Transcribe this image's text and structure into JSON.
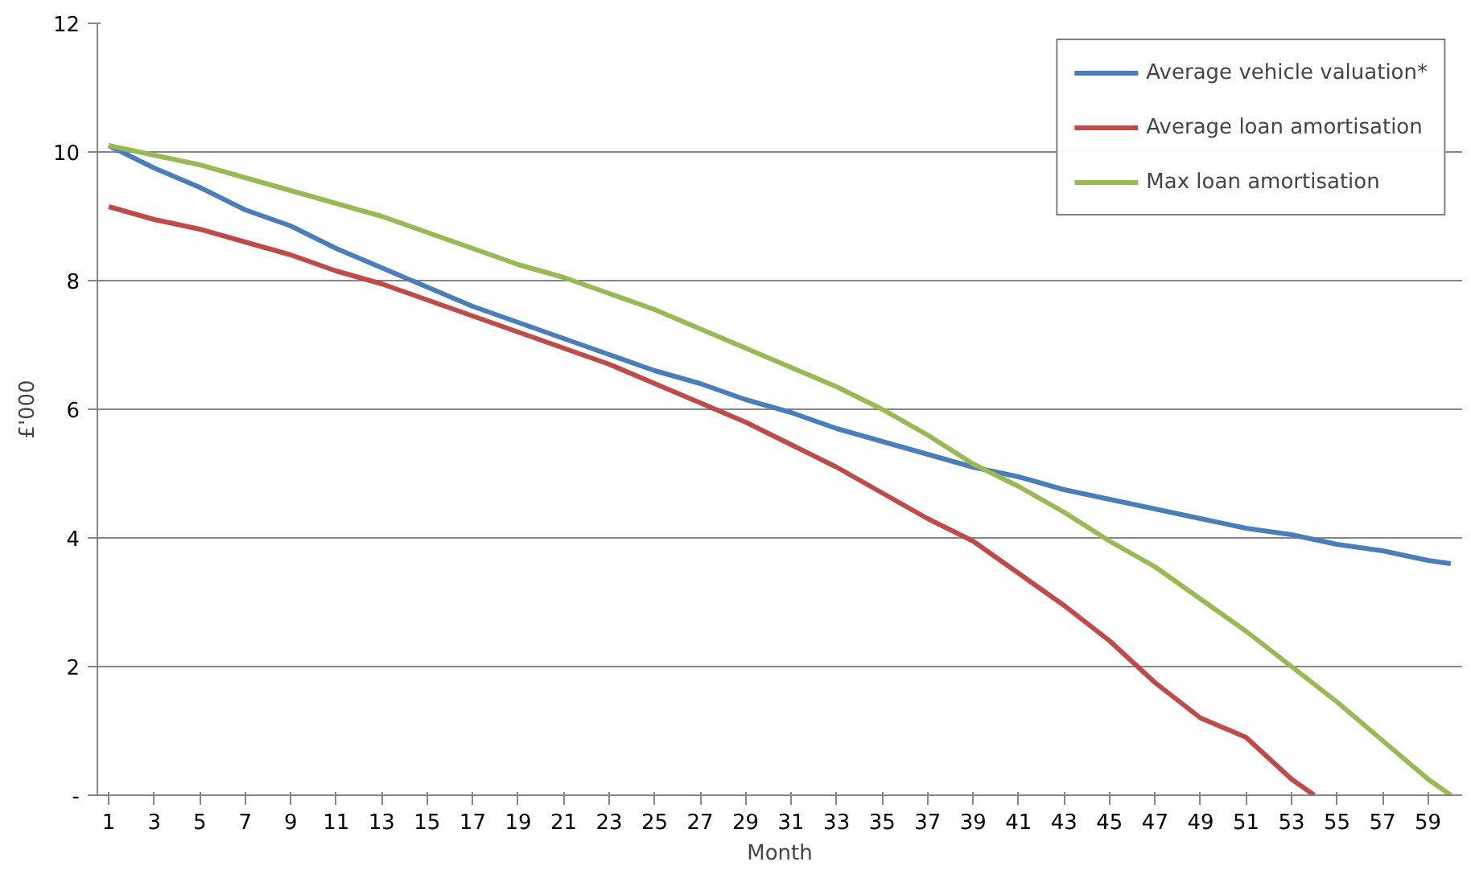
{
  "chart_data": {
    "type": "line",
    "xlabel": "Month",
    "ylabel": "£'000",
    "xlim": [
      0.5,
      60.5
    ],
    "xticks": [
      1,
      3,
      5,
      7,
      9,
      11,
      13,
      15,
      17,
      19,
      21,
      23,
      25,
      27,
      29,
      31,
      33,
      35,
      37,
      39,
      41,
      43,
      45,
      47,
      49,
      51,
      53,
      55,
      57,
      59
    ],
    "ylim": [
      0,
      12
    ],
    "yticks": [
      {
        "value": 0,
        "label": "-"
      },
      2,
      4,
      6,
      8,
      10,
      12
    ],
    "grid": "y",
    "legend": "top right",
    "marker": "none",
    "line_style": "solid",
    "series": [
      {
        "name": "Average vehicle valuation*",
        "color": "#4a7ebb",
        "x": [
          1,
          3,
          5,
          7,
          9,
          11,
          13,
          15,
          17,
          19,
          21,
          23,
          25,
          27,
          29,
          31,
          33,
          35,
          37,
          39,
          41,
          43,
          45,
          47,
          49,
          51,
          53,
          55,
          57,
          59,
          60
        ],
        "values": [
          10.1,
          9.75,
          9.45,
          9.1,
          8.85,
          8.5,
          8.2,
          7.9,
          7.6,
          7.35,
          7.1,
          6.85,
          6.6,
          6.4,
          6.15,
          5.95,
          5.7,
          5.5,
          5.3,
          5.1,
          4.95,
          4.75,
          4.6,
          4.45,
          4.3,
          4.15,
          4.05,
          3.9,
          3.8,
          3.65,
          3.6
        ]
      },
      {
        "name": "Average loan amortisation",
        "color": "#be4b48",
        "x": [
          1,
          3,
          5,
          7,
          9,
          11,
          13,
          15,
          17,
          19,
          21,
          23,
          25,
          27,
          29,
          31,
          33,
          35,
          37,
          39,
          41,
          43,
          45,
          47,
          49,
          51,
          53,
          54
        ],
        "values": [
          9.15,
          8.95,
          8.8,
          8.6,
          8.4,
          8.15,
          7.95,
          7.7,
          7.45,
          7.2,
          6.95,
          6.7,
          6.4,
          6.1,
          5.8,
          5.45,
          5.1,
          4.7,
          4.3,
          3.95,
          3.45,
          2.95,
          2.4,
          1.75,
          1.2,
          0.9,
          0.25,
          0
        ]
      },
      {
        "name": "Max loan amortisation",
        "color": "#98b954",
        "x": [
          1,
          3,
          5,
          7,
          9,
          11,
          13,
          15,
          17,
          19,
          21,
          23,
          25,
          27,
          29,
          31,
          33,
          35,
          37,
          39,
          41,
          43,
          45,
          47,
          49,
          51,
          53,
          55,
          57,
          59,
          60
        ],
        "values": [
          10.1,
          9.95,
          9.8,
          9.6,
          9.4,
          9.2,
          9.0,
          8.75,
          8.5,
          8.25,
          8.05,
          7.8,
          7.55,
          7.25,
          6.95,
          6.65,
          6.35,
          6.0,
          5.6,
          5.15,
          4.8,
          4.4,
          3.95,
          3.55,
          3.05,
          2.55,
          2.0,
          1.45,
          0.85,
          0.25,
          0
        ]
      }
    ]
  }
}
